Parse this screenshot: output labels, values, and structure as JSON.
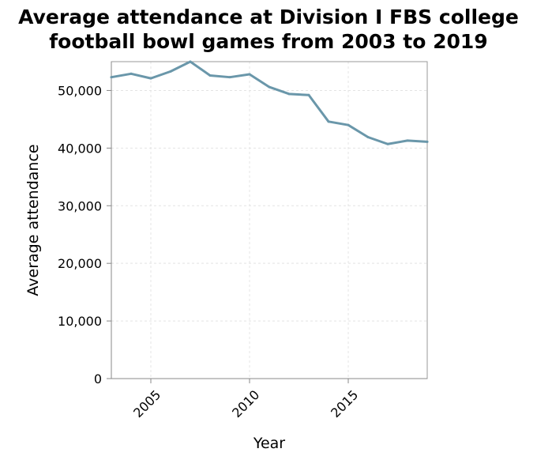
{
  "chart_data": {
    "type": "line",
    "title": [
      "Average attendance at Division I FBS college",
      "football bowl games from 2003 to 2019"
    ],
    "xlabel": "Year",
    "ylabel": "Average attendance",
    "xlim": [
      2003,
      2019
    ],
    "ylim": [
      0,
      55000
    ],
    "x_ticks": [
      2005,
      2010,
      2015
    ],
    "x_tick_labels": [
      "2005",
      "2010",
      "2015"
    ],
    "y_ticks": [
      0,
      10000,
      20000,
      30000,
      40000,
      50000
    ],
    "y_tick_labels": [
      "0",
      "10,000",
      "20,000",
      "30,000",
      "40,000",
      "50,000"
    ],
    "grid": true,
    "line_color": "#6a97aa",
    "series": [
      {
        "x": [
          2003,
          2004,
          2005,
          2006,
          2007,
          2008,
          2009,
          2010,
          2011,
          2012,
          2013,
          2014,
          2015,
          2016,
          2017,
          2018,
          2019
        ],
        "values": [
          52300,
          52900,
          52100,
          53300,
          55000,
          52600,
          52300,
          52800,
          50600,
          49400,
          49200,
          44600,
          44000,
          41900,
          40700,
          41300,
          41100
        ]
      }
    ]
  }
}
